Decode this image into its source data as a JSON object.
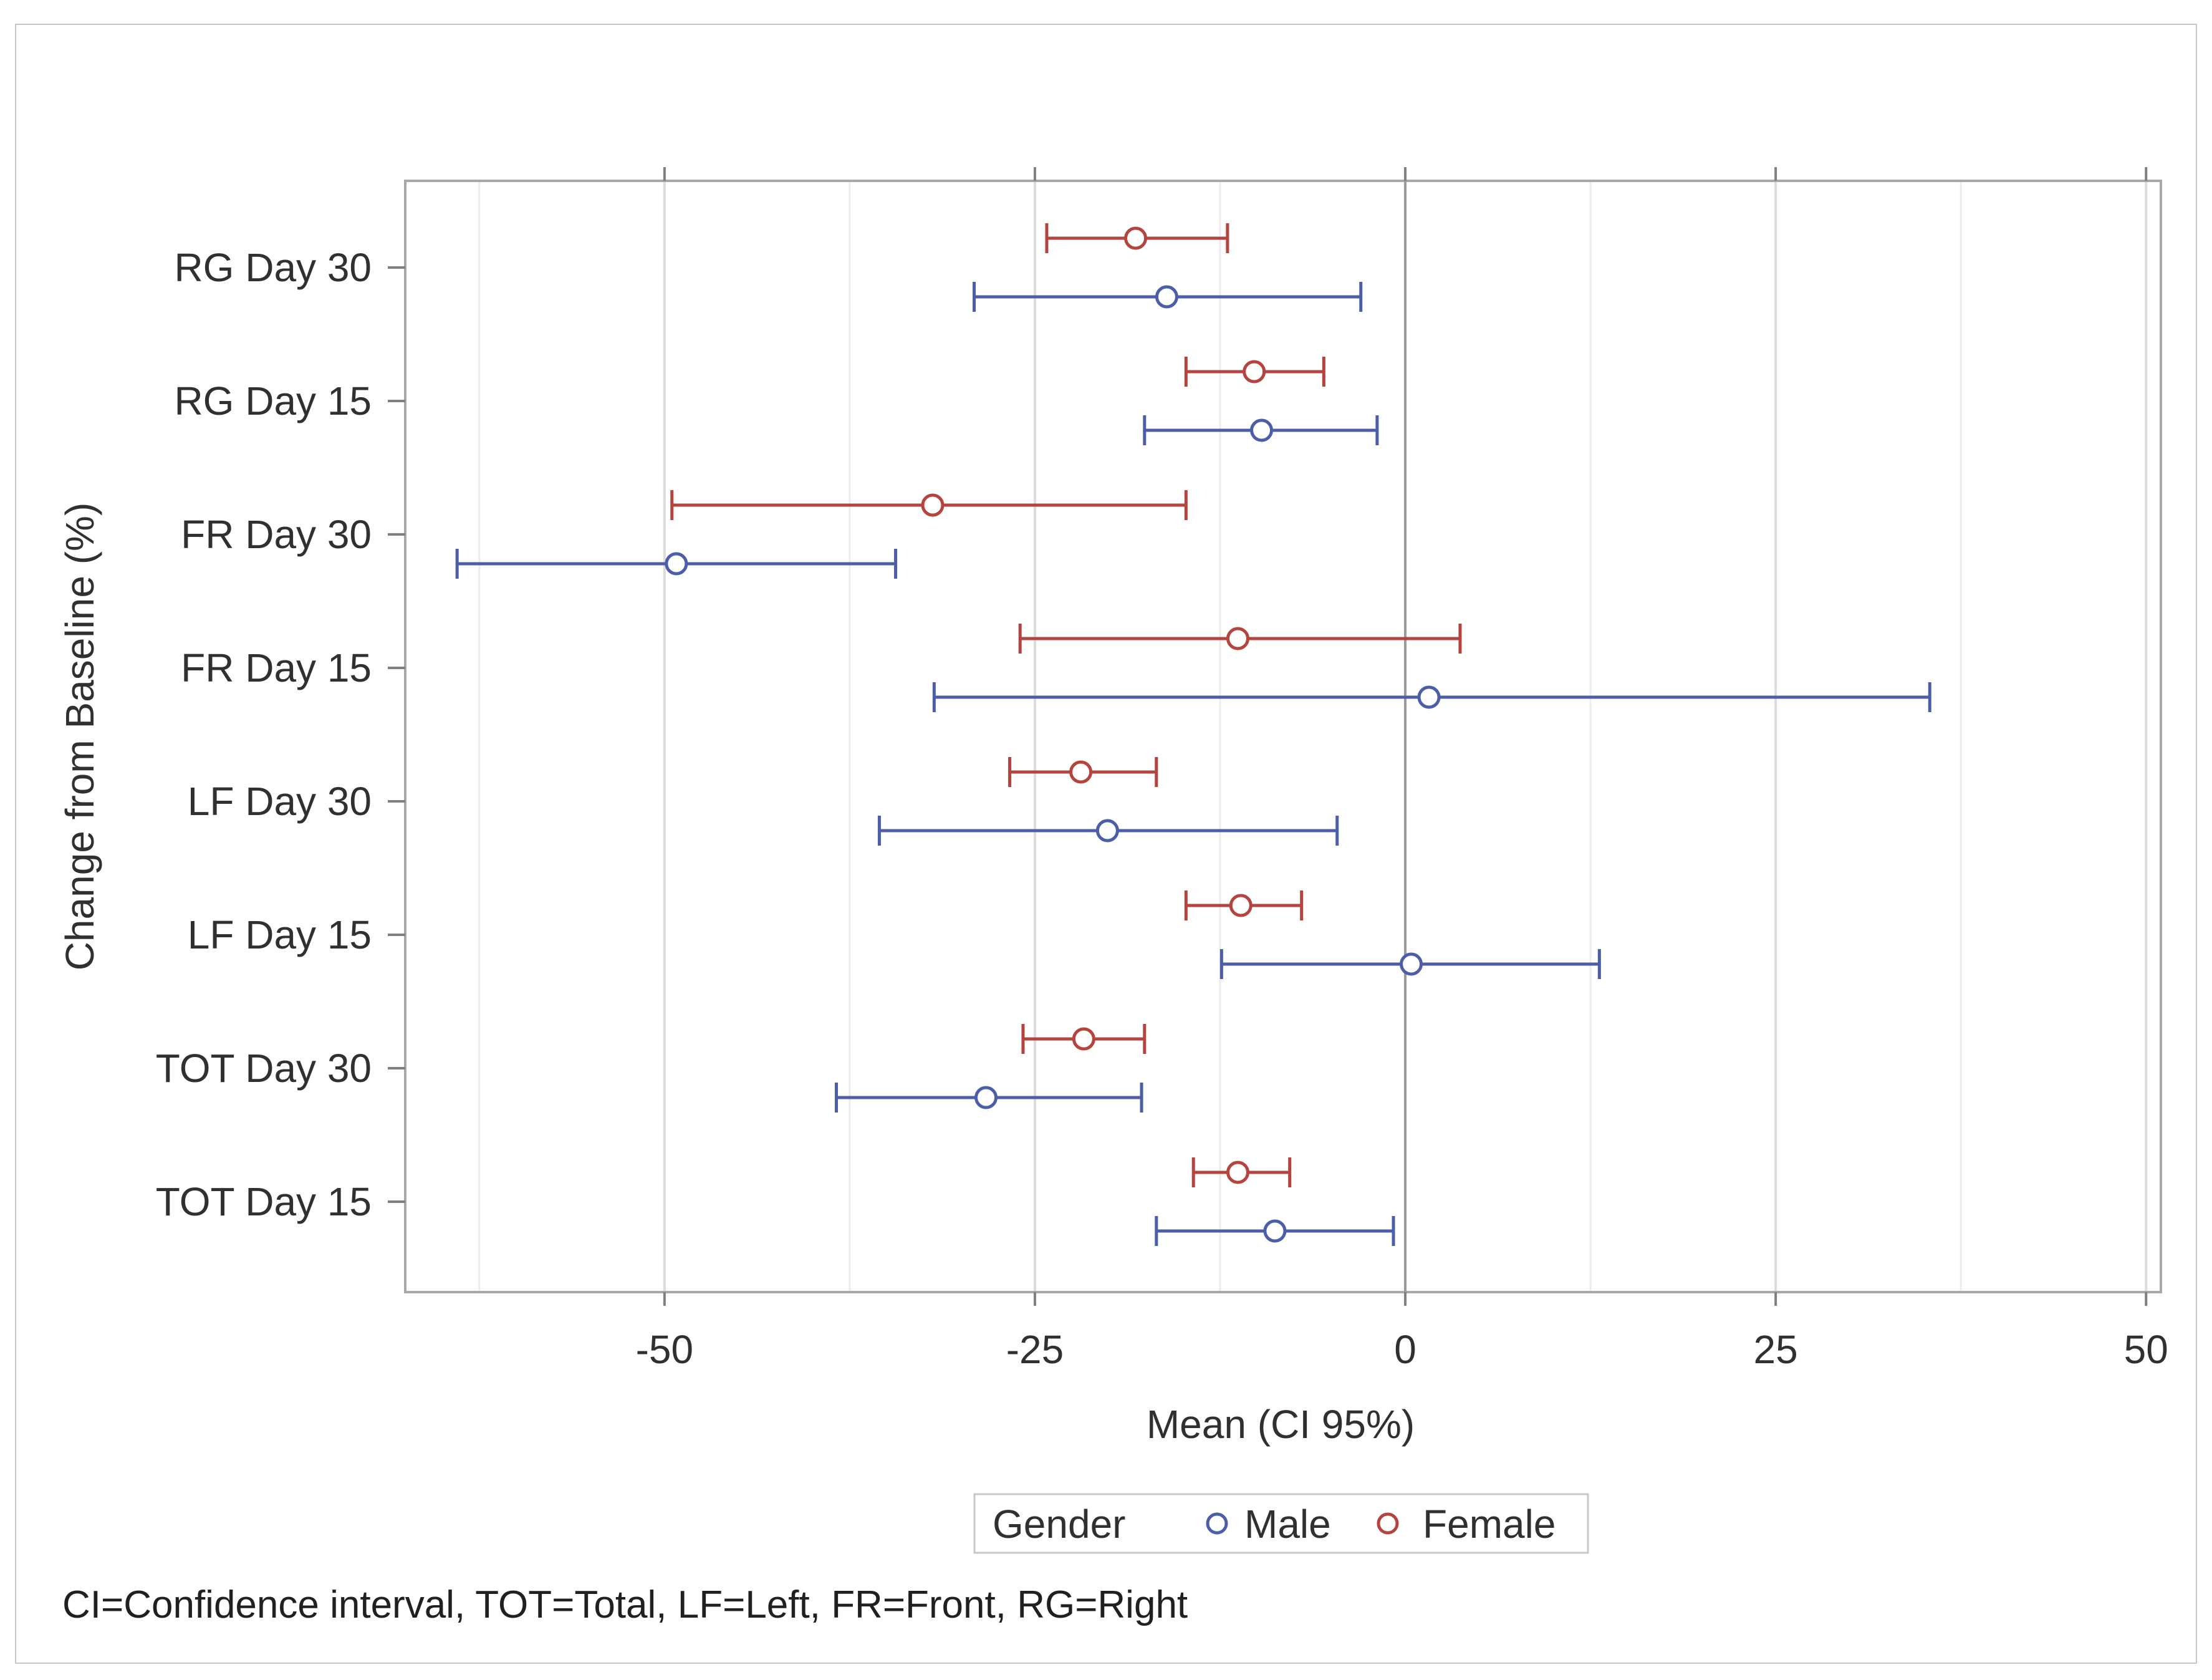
{
  "chart_data": {
    "type": "forest",
    "title": "",
    "xlabel": "Mean (CI 95%)",
    "ylabel": "Change from Baseline (%)",
    "xlim": [
      -67.5,
      51
    ],
    "xticks": [
      -50,
      -25,
      0,
      25,
      50
    ],
    "xtick_labels": [
      "-50",
      "-25",
      "0",
      "25",
      "50"
    ],
    "categories": [
      "RG Day 30",
      "RG Day 15",
      "FR Day 30",
      "FR Day 15",
      "LF Day 30",
      "LF Day 15",
      "TOT Day 30",
      "TOT Day 15"
    ],
    "series": [
      {
        "name": "Female",
        "color": "#b5443f",
        "means": [
          -18.2,
          -10.2,
          -31.9,
          -11.3,
          -21.9,
          -11.1,
          -21.7,
          -11.3
        ],
        "lower": [
          -24.2,
          -14.8,
          -49.5,
          -26.0,
          -26.7,
          -14.8,
          -25.8,
          -14.3
        ],
        "upper": [
          -12.0,
          -5.5,
          -14.8,
          3.7,
          -16.8,
          -7.0,
          -17.6,
          -7.8
        ]
      },
      {
        "name": "Male",
        "color": "#4c5ea8",
        "means": [
          -16.1,
          -9.7,
          -49.2,
          1.6,
          -20.1,
          0.4,
          -28.3,
          -8.8
        ],
        "lower": [
          -29.1,
          -17.6,
          -64.0,
          -31.8,
          -35.5,
          -12.4,
          -38.4,
          -16.8
        ],
        "upper": [
          -3.0,
          -1.9,
          -34.4,
          35.4,
          -4.6,
          13.1,
          -17.8,
          -0.8
        ]
      }
    ],
    "legend": {
      "title": "Gender",
      "entries": [
        "Male",
        "Female"
      ],
      "placement": "bottom-center"
    },
    "footnote": "CI=Confidence interval, TOT=Total, LF=Left, FR=Front, RG=Right"
  }
}
